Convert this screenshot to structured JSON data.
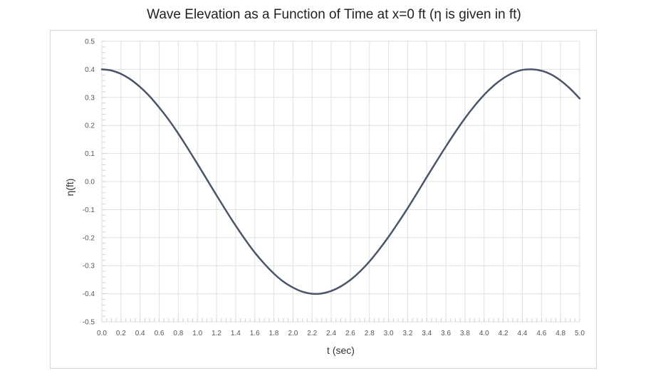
{
  "chart_data": {
    "type": "line",
    "title": "Wave Elevation as a Function of Time at x=0 ft (η is given in ft)",
    "xlabel": "t  (sec)",
    "ylabel": "η(ft)",
    "xlim": [
      0,
      5
    ],
    "ylim": [
      -0.5,
      0.5
    ],
    "x_ticks": [
      "0.0",
      "0.2",
      "0.4",
      "0.6",
      "0.8",
      "1.0",
      "1.2",
      "1.4",
      "1.6",
      "1.8",
      "2.0",
      "2.2",
      "2.4",
      "2.6",
      "2.8",
      "3.0",
      "3.2",
      "3.4",
      "3.6",
      "3.8",
      "4.0",
      "4.2",
      "4.4",
      "4.6",
      "4.8",
      "5.0"
    ],
    "y_ticks": [
      "0.5",
      "0.4",
      "0.3",
      "0.2",
      "0.1",
      "0.0",
      "-0.1",
      "-0.2",
      "-0.3",
      "-0.4",
      "-0.5"
    ],
    "grid": true,
    "legend": "none",
    "series": [
      {
        "color": "#4a5568",
        "x": [
          0.0,
          0.1,
          0.2,
          0.3,
          0.4,
          0.5,
          0.6,
          0.7,
          0.8,
          0.9,
          1.0,
          1.1,
          1.2,
          1.3,
          1.4,
          1.5,
          1.6,
          1.7,
          1.8,
          1.9,
          2.0,
          2.1,
          2.2,
          2.3,
          2.4,
          2.5,
          2.6,
          2.7,
          2.8,
          2.9,
          3.0,
          3.1,
          3.2,
          3.3,
          3.4,
          3.5,
          3.6,
          3.7,
          3.8,
          3.9,
          4.0,
          4.1,
          4.2,
          4.3,
          4.4,
          4.5,
          4.6,
          4.7,
          4.8,
          4.9,
          5.0
        ],
        "y": [
          0.4,
          0.396,
          0.384,
          0.364,
          0.337,
          0.304,
          0.264,
          0.22,
          0.171,
          0.118,
          0.063,
          0.007,
          -0.049,
          -0.104,
          -0.157,
          -0.207,
          -0.253,
          -0.293,
          -0.328,
          -0.357,
          -0.378,
          -0.393,
          -0.4,
          -0.399,
          -0.39,
          -0.374,
          -0.351,
          -0.321,
          -0.285,
          -0.243,
          -0.197,
          -0.147,
          -0.095,
          -0.04,
          0.016,
          0.071,
          0.125,
          0.177,
          0.226,
          0.27,
          0.309,
          0.342,
          0.368,
          0.387,
          0.398,
          0.4,
          0.395,
          0.382,
          0.36,
          0.331,
          0.296
        ]
      }
    ]
  }
}
